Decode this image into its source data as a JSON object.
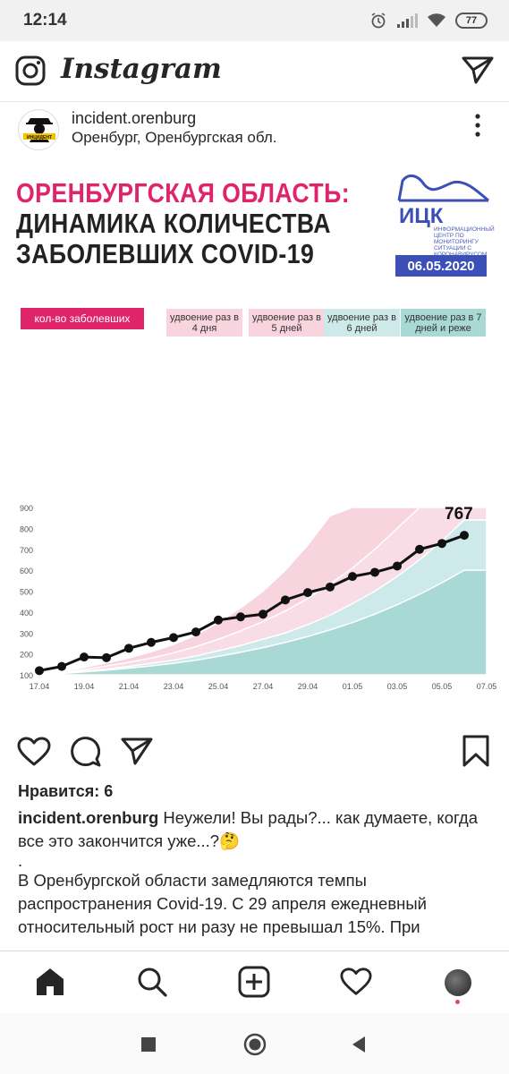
{
  "status_bar": {
    "time": "12:14",
    "battery": "77"
  },
  "header": {
    "app_name": "Instagram"
  },
  "post": {
    "author": "incident.orenburg",
    "location": "Оренбург, Оренбургская обл.",
    "avatar_text": "ИНЦИДЕНТ ОРЕНБУРГ"
  },
  "image": {
    "title_line1": "ОРЕНБУРГСКАЯ ОБЛАСТЬ:",
    "title_line2": "ДИНАМИКА КОЛИЧЕСТВА",
    "title_line3": "ЗАБОЛЕВШИХ COVID-19",
    "logo_name": "ИЦК",
    "logo_sub": "ИНФОРМАЦИОННЫЙ ЦЕНТР ПО МОНИТОРИНГУ СИТУАЦИИ С КОРОНАВИРУСОМ",
    "date": "06.05.2020",
    "accent_color": "#e0246a",
    "legend": [
      "кол-во заболевших",
      "удвоение раз в 4 дня",
      "удвоение раз в 5 дней",
      "удвоение раз в 6 дней",
      "удвоение раз в 7 дней и реже"
    ],
    "legend_colors": [
      "#e0246a",
      "#f7d4de",
      "#f7d4de",
      "#cde9e9",
      "#a8d9d5"
    ],
    "last_value_label": "767"
  },
  "chart_data": {
    "type": "line",
    "x_tick_labels": [
      "17.04",
      "19.04",
      "21.04",
      "23.04",
      "25.04",
      "27.04",
      "29.04",
      "01.05",
      "03.05",
      "05.05",
      "07.05"
    ],
    "y_tick_labels": [
      "100",
      "200",
      "300",
      "400",
      "500",
      "600",
      "700",
      "800",
      "900"
    ],
    "ylim": [
      100,
      900
    ],
    "series": [
      {
        "name": "кол-во заболевших",
        "x": [
          "17.04",
          "18.04",
          "19.04",
          "20.04",
          "21.04",
          "22.04",
          "23.04",
          "24.04",
          "25.04",
          "26.04",
          "27.04",
          "28.04",
          "29.04",
          "30.04",
          "01.05",
          "02.05",
          "03.05",
          "04.05",
          "05.05",
          "06.05"
        ],
        "values": [
          120,
          140,
          185,
          182,
          227,
          255,
          278,
          305,
          362,
          377,
          390,
          458,
          493,
          520,
          570,
          590,
          620,
          700,
          728,
          767
        ]
      }
    ],
    "bands": [
      {
        "name": "удвоение раз в 4 дня",
        "color": "#f7d4de",
        "values": [
          100,
          115,
          135,
          158,
          180,
          210,
          245,
          290,
          350,
          420,
          500,
          600,
          720,
          860,
          900,
          900,
          900,
          900,
          900,
          900
        ]
      },
      {
        "name": "удвоение раз в 5 дней",
        "color": "#f9dde6",
        "values": [
          100,
          110,
          125,
          142,
          160,
          180,
          205,
          235,
          270,
          310,
          355,
          405,
          465,
          535,
          610,
          700,
          800,
          900,
          900,
          900
        ]
      },
      {
        "name": "удвоение раз в 6 дней",
        "color": "#cde9e9",
        "values": [
          100,
          108,
          118,
          128,
          140,
          155,
          170,
          190,
          215,
          240,
          270,
          300,
          340,
          385,
          440,
          500,
          570,
          650,
          740,
          840
        ]
      },
      {
        "name": "удвоение раз в 7 дней и реже",
        "color": "#a8d9d5",
        "values": [
          100,
          106,
          114,
          122,
          132,
          143,
          155,
          170,
          188,
          208,
          230,
          255,
          283,
          315,
          350,
          390,
          435,
          485,
          540,
          600
        ]
      }
    ]
  },
  "actions": {
    "likes": "Нравится: 6"
  },
  "caption": {
    "user": "incident.orenburg",
    "line1": "Неужели! Вы рады?... как думаете, когда все это закончится уже...?🤔",
    "dot": ".",
    "body": "В Оренбургской области замедляются темпы распространения Covid-19. С 29 апреля ежедневный относительный рост ни разу не превышал 15%. При"
  }
}
